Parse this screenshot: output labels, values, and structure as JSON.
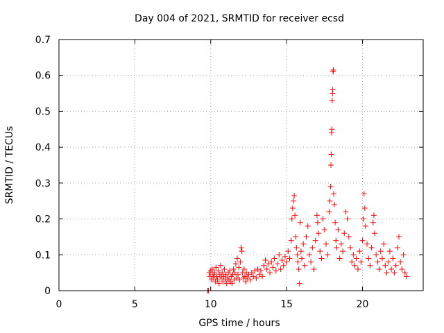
{
  "chart_data": {
    "type": "scatter",
    "title": "Day 004 of 2021, SRMTID for receiver ecsd",
    "xlabel": "GPS time / hours",
    "ylabel": "SRMTID / TECUs",
    "xlim": [
      0,
      24
    ],
    "ylim": [
      0,
      0.7
    ],
    "xticks": [
      0,
      5,
      10,
      15,
      20
    ],
    "yticks": [
      0,
      0.1,
      0.2,
      0.3,
      0.4,
      0.5,
      0.6,
      0.7
    ],
    "xtick_labels": [
      "0",
      "5",
      "10",
      "15",
      "20"
    ],
    "ytick_labels": [
      "0",
      "0.1",
      "0.2",
      "0.3",
      "0.4",
      "0.5",
      "0.6",
      "0.7"
    ],
    "grid": true,
    "series": [
      {
        "name": "SRMTID",
        "marker": "plus",
        "color": "#ff0000",
        "points": [
          [
            9.8,
            0.0
          ],
          [
            9.85,
            0.0
          ],
          [
            9.9,
            0.05
          ],
          [
            9.95,
            0.04
          ],
          [
            10.0,
            0.055
          ],
          [
            10.05,
            0.03
          ],
          [
            10.1,
            0.06
          ],
          [
            10.15,
            0.045
          ],
          [
            10.2,
            0.035
          ],
          [
            10.25,
            0.05
          ],
          [
            10.3,
            0.025
          ],
          [
            10.35,
            0.065
          ],
          [
            10.4,
            0.04
          ],
          [
            10.45,
            0.03
          ],
          [
            10.5,
            0.055
          ],
          [
            10.55,
            0.02
          ],
          [
            10.6,
            0.045
          ],
          [
            10.65,
            0.07
          ],
          [
            10.7,
            0.035
          ],
          [
            10.75,
            0.05
          ],
          [
            10.8,
            0.025
          ],
          [
            10.85,
            0.04
          ],
          [
            10.9,
            0.06
          ],
          [
            10.95,
            0.03
          ],
          [
            11.0,
            0.045
          ],
          [
            11.05,
            0.02
          ],
          [
            11.1,
            0.035
          ],
          [
            11.15,
            0.05
          ],
          [
            11.2,
            0.03
          ],
          [
            11.25,
            0.055
          ],
          [
            11.3,
            0.025
          ],
          [
            11.35,
            0.04
          ],
          [
            11.4,
            0.02
          ],
          [
            11.45,
            0.045
          ],
          [
            11.5,
            0.06
          ],
          [
            11.55,
            0.03
          ],
          [
            11.6,
            0.05
          ],
          [
            11.65,
            0.075
          ],
          [
            11.7,
            0.035
          ],
          [
            11.75,
            0.09
          ],
          [
            11.8,
            0.045
          ],
          [
            11.85,
            0.065
          ],
          [
            11.9,
            0.03
          ],
          [
            11.95,
            0.08
          ],
          [
            12.0,
            0.12
          ],
          [
            12.05,
            0.11
          ],
          [
            12.1,
            0.05
          ],
          [
            12.15,
            0.035
          ],
          [
            12.2,
            0.06
          ],
          [
            12.25,
            0.04
          ],
          [
            12.3,
            0.025
          ],
          [
            12.35,
            0.05
          ],
          [
            12.4,
            0.035
          ],
          [
            12.5,
            0.045
          ],
          [
            12.6,
            0.03
          ],
          [
            12.7,
            0.05
          ],
          [
            12.8,
            0.04
          ],
          [
            12.9,
            0.055
          ],
          [
            13.0,
            0.035
          ],
          [
            13.1,
            0.06
          ],
          [
            13.2,
            0.045
          ],
          [
            13.3,
            0.055
          ],
          [
            13.4,
            0.04
          ],
          [
            13.5,
            0.07
          ],
          [
            13.6,
            0.085
          ],
          [
            13.7,
            0.06
          ],
          [
            13.8,
            0.075
          ],
          [
            13.9,
            0.05
          ],
          [
            14.0,
            0.08
          ],
          [
            14.1,
            0.065
          ],
          [
            14.2,
            0.09
          ],
          [
            14.3,
            0.055
          ],
          [
            14.4,
            0.075
          ],
          [
            14.5,
            0.1
          ],
          [
            14.6,
            0.06
          ],
          [
            14.7,
            0.085
          ],
          [
            14.8,
            0.07
          ],
          [
            14.9,
            0.095
          ],
          [
            15.0,
            0.08
          ],
          [
            15.1,
            0.11
          ],
          [
            15.2,
            0.09
          ],
          [
            15.3,
            0.14
          ],
          [
            15.35,
            0.2
          ],
          [
            15.4,
            0.23
          ],
          [
            15.45,
            0.25
          ],
          [
            15.5,
            0.265
          ],
          [
            15.55,
            0.21
          ],
          [
            15.6,
            0.15
          ],
          [
            15.65,
            0.12
          ],
          [
            15.7,
            0.1
          ],
          [
            15.75,
            0.08
          ],
          [
            15.8,
            0.06
          ],
          [
            15.85,
            0.02
          ],
          [
            15.9,
            0.19
          ],
          [
            15.95,
            0.11
          ],
          [
            16.0,
            0.09
          ],
          [
            16.1,
            0.13
          ],
          [
            16.2,
            0.07
          ],
          [
            16.3,
            0.15
          ],
          [
            16.4,
            0.18
          ],
          [
            16.5,
            0.1
          ],
          [
            16.6,
            0.08
          ],
          [
            16.7,
            0.12
          ],
          [
            16.8,
            0.06
          ],
          [
            16.9,
            0.14
          ],
          [
            17.0,
            0.21
          ],
          [
            17.05,
            0.19
          ],
          [
            17.1,
            0.16
          ],
          [
            17.2,
            0.11
          ],
          [
            17.3,
            0.09
          ],
          [
            17.4,
            0.2
          ],
          [
            17.5,
            0.17
          ],
          [
            17.6,
            0.13
          ],
          [
            17.7,
            0.1
          ],
          [
            17.8,
            0.22
          ],
          [
            17.85,
            0.25
          ],
          [
            17.9,
            0.29
          ],
          [
            17.92,
            0.35
          ],
          [
            17.94,
            0.38
          ],
          [
            17.96,
            0.44
          ],
          [
            17.98,
            0.45
          ],
          [
            18.0,
            0.53
          ],
          [
            18.02,
            0.55
          ],
          [
            18.04,
            0.56
          ],
          [
            18.06,
            0.61
          ],
          [
            18.08,
            0.615
          ],
          [
            18.1,
            0.27
          ],
          [
            18.15,
            0.24
          ],
          [
            18.2,
            0.19
          ],
          [
            18.25,
            0.14
          ],
          [
            18.3,
            0.12
          ],
          [
            18.4,
            0.17
          ],
          [
            18.5,
            0.09
          ],
          [
            18.6,
            0.13
          ],
          [
            18.7,
            0.11
          ],
          [
            18.8,
            0.16
          ],
          [
            18.9,
            0.22
          ],
          [
            19.0,
            0.2
          ],
          [
            19.1,
            0.15
          ],
          [
            19.2,
            0.12
          ],
          [
            19.3,
            0.08
          ],
          [
            19.4,
            0.1
          ],
          [
            19.5,
            0.07
          ],
          [
            19.6,
            0.09
          ],
          [
            19.7,
            0.06
          ],
          [
            19.8,
            0.11
          ],
          [
            19.9,
            0.08
          ],
          [
            20.0,
            0.14
          ],
          [
            20.05,
            0.2
          ],
          [
            20.1,
            0.27
          ],
          [
            20.15,
            0.23
          ],
          [
            20.2,
            0.18
          ],
          [
            20.3,
            0.13
          ],
          [
            20.4,
            0.09
          ],
          [
            20.5,
            0.07
          ],
          [
            20.6,
            0.12
          ],
          [
            20.7,
            0.19
          ],
          [
            20.75,
            0.21
          ],
          [
            20.8,
            0.16
          ],
          [
            20.9,
            0.1
          ],
          [
            21.0,
            0.08
          ],
          [
            21.1,
            0.06
          ],
          [
            21.2,
            0.11
          ],
          [
            21.3,
            0.09
          ],
          [
            21.4,
            0.13
          ],
          [
            21.5,
            0.07
          ],
          [
            21.6,
            0.05
          ],
          [
            21.7,
            0.08
          ],
          [
            21.8,
            0.11
          ],
          [
            21.9,
            0.06
          ],
          [
            22.0,
            0.09
          ],
          [
            22.1,
            0.05
          ],
          [
            22.2,
            0.07
          ],
          [
            22.3,
            0.12
          ],
          [
            22.4,
            0.15
          ],
          [
            22.5,
            0.08
          ],
          [
            22.6,
            0.06
          ],
          [
            22.7,
            0.1
          ],
          [
            22.8,
            0.05
          ],
          [
            22.9,
            0.04
          ]
        ]
      }
    ]
  }
}
